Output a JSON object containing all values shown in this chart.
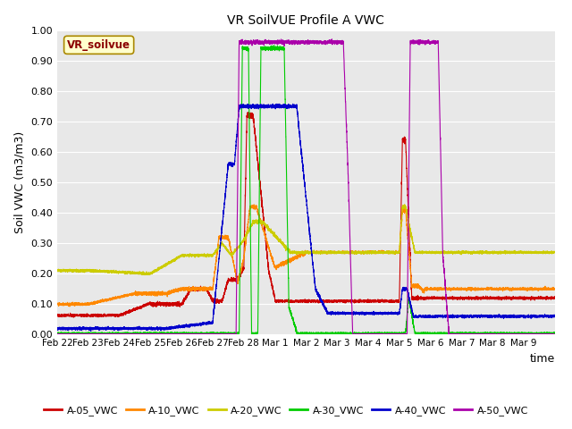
{
  "title": "VR SoilVUE Profile A VWC",
  "ylabel": "Soil VWC (m3/m3)",
  "xlabel": "time",
  "ylim": [
    0.0,
    1.0
  ],
  "yticks": [
    0.0,
    0.1,
    0.2,
    0.3,
    0.4,
    0.5,
    0.6,
    0.7,
    0.8,
    0.9,
    1.0
  ],
  "series_colors": {
    "A-05_VWC": "#cc0000",
    "A-10_VWC": "#ff8800",
    "A-20_VWC": "#cccc00",
    "A-30_VWC": "#00cc00",
    "A-40_VWC": "#0000cc",
    "A-50_VWC": "#aa00aa"
  },
  "legend_label": "VR_soilvue",
  "background_color": "#e8e8e8",
  "grid_color": "#ffffff"
}
